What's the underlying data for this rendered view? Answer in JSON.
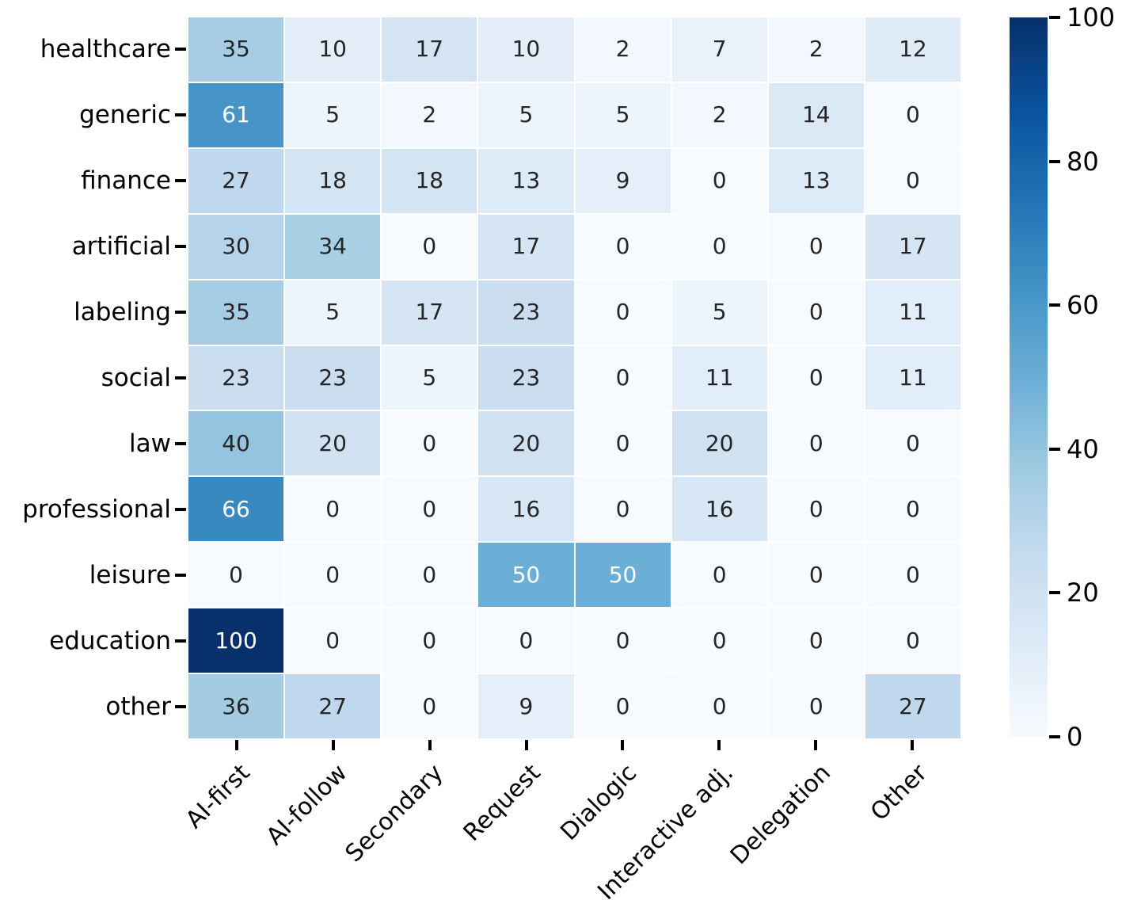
{
  "chart_data": {
    "type": "heatmap",
    "title": "",
    "xlabel": "",
    "ylabel": "",
    "rows": [
      "healthcare",
      "generic",
      "finance",
      "artificial",
      "labeling",
      "social",
      "law",
      "professional",
      "leisure",
      "education",
      "other"
    ],
    "columns": [
      "AI-first",
      "AI-follow",
      "Secondary",
      "Request",
      "Dialogic",
      "Interactive adj.",
      "Delegation",
      "Other"
    ],
    "values": [
      [
        35,
        10,
        17,
        10,
        2,
        7,
        2,
        12
      ],
      [
        61,
        5,
        2,
        5,
        5,
        2,
        14,
        0
      ],
      [
        27,
        18,
        18,
        13,
        9,
        0,
        13,
        0
      ],
      [
        30,
        34,
        0,
        17,
        0,
        0,
        0,
        17
      ],
      [
        35,
        5,
        17,
        23,
        0,
        5,
        0,
        11
      ],
      [
        23,
        23,
        5,
        23,
        0,
        11,
        0,
        11
      ],
      [
        40,
        20,
        0,
        20,
        0,
        20,
        0,
        0
      ],
      [
        66,
        0,
        0,
        16,
        0,
        16,
        0,
        0
      ],
      [
        0,
        0,
        0,
        50,
        50,
        0,
        0,
        0
      ],
      [
        100,
        0,
        0,
        0,
        0,
        0,
        0,
        0
      ],
      [
        36,
        27,
        0,
        9,
        0,
        0,
        0,
        27
      ]
    ],
    "vmin": 0,
    "vmax": 100,
    "colorbar_ticks": [
      0,
      20,
      40,
      60,
      80,
      100
    ],
    "colormap_name": "Blues",
    "colormap_stops": [
      "#f7fbff",
      "#deebf7",
      "#c6dbef",
      "#9ecae1",
      "#6baed6",
      "#4292c6",
      "#2171b5",
      "#08519c",
      "#08306b"
    ],
    "annotation_color_dark": "#262626",
    "annotation_color_light": "#ffffff",
    "grid_on": false,
    "legend_position": "colorbar-right"
  }
}
